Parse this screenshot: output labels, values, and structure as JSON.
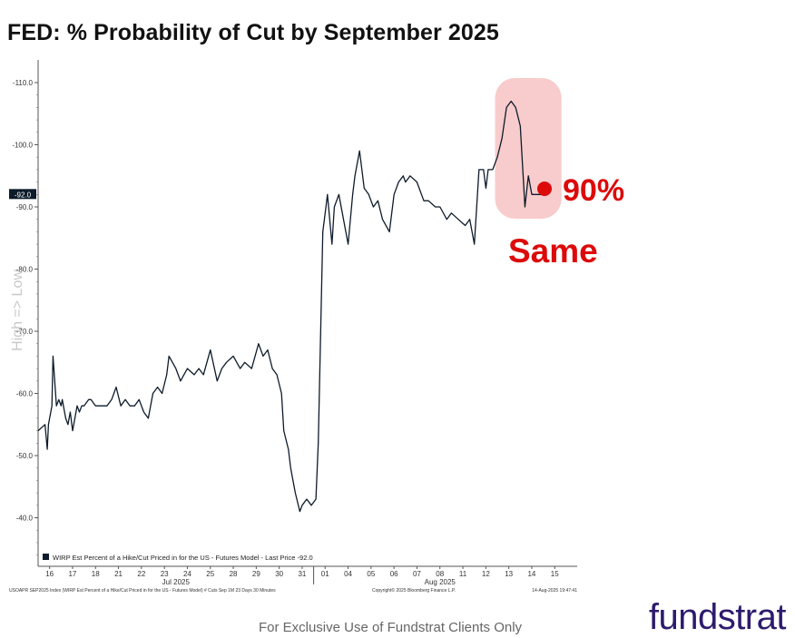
{
  "title": "FED: % Probability of Cut by September 2025",
  "chart_data": {
    "type": "line",
    "ylabel": "High => Low",
    "ylim": [
      -35,
      -114
    ],
    "y_ticks": [
      "-110.0",
      "-100.0",
      "-90.0",
      "-80.0",
      "-70.0",
      "-60.0",
      "-50.0",
      "-40.0"
    ],
    "y_tick_values": [
      -110,
      -100,
      -90,
      -80,
      -70,
      -60,
      -50,
      -40
    ],
    "x_tick_labels": [
      "16",
      "17",
      "18",
      "21",
      "22",
      "23",
      "24",
      "25",
      "28",
      "29",
      "30",
      "31",
      "01",
      "04",
      "05",
      "06",
      "07",
      "08",
      "11",
      "12",
      "13",
      "14",
      "15"
    ],
    "x_tick_positions": [
      0.5,
      1.5,
      2.5,
      3.5,
      4.5,
      5.5,
      6.5,
      7.5,
      8.5,
      9.5,
      10.5,
      11.5,
      12.5,
      13.5,
      14.5,
      15.5,
      16.5,
      17.5,
      18.5,
      19.5,
      20.5,
      21.5,
      22.5
    ],
    "x_range": [
      0,
      23.2
    ],
    "month_labels": [
      {
        "label": "Jul 2025",
        "x": 6
      },
      {
        "label": "Aug 2025",
        "x": 17.5
      }
    ],
    "month_divider_x": 12,
    "last_price_label": "-92.0",
    "legend": "WIRP Est Percent of a Hike/Cut Priced in for the US - Futures Model - Last Price -92.0",
    "series": [
      {
        "name": "WIRP Est Percent of a Hike/Cut Priced in for the US - Futures Model",
        "color": "#0d1b2a",
        "x": [
          0,
          0.3,
          0.4,
          0.45,
          0.6,
          0.65,
          0.8,
          0.9,
          1.0,
          1.05,
          1.2,
          1.3,
          1.4,
          1.5,
          1.7,
          1.8,
          1.9,
          2.0,
          2.2,
          2.3,
          2.5,
          2.6,
          2.8,
          3.0,
          3.2,
          3.4,
          3.6,
          3.8,
          4.0,
          4.2,
          4.4,
          4.6,
          4.8,
          5.0,
          5.2,
          5.4,
          5.6,
          5.7,
          6.0,
          6.2,
          6.5,
          6.8,
          7.0,
          7.2,
          7.5,
          7.8,
          8.0,
          8.2,
          8.5,
          8.8,
          9.0,
          9.3,
          9.6,
          9.8,
          10.0,
          10.2,
          10.4,
          10.6,
          10.7,
          10.9,
          11.0,
          11.2,
          11.4,
          11.5,
          11.7,
          11.9,
          12.1,
          12.2,
          12.4,
          12.5,
          12.6,
          12.8,
          12.9,
          13.1,
          13.3,
          13.5,
          13.7,
          13.8,
          14.0,
          14.2,
          14.4,
          14.6,
          14.8,
          15.0,
          15.3,
          15.5,
          15.7,
          15.9,
          16.0,
          16.2,
          16.5,
          16.8,
          17.0,
          17.3,
          17.5,
          17.8,
          18.0,
          18.3,
          18.6,
          18.8,
          19.0,
          19.2,
          19.4,
          19.5,
          19.6,
          19.8,
          20.0,
          20.2,
          20.4,
          20.6,
          20.8,
          21.0,
          21.2,
          21.35,
          21.5,
          21.7,
          21.9,
          22.0
        ],
        "y": [
          -54,
          -55,
          -51,
          -55,
          -58,
          -66,
          -58,
          -59,
          -58,
          -59,
          -56,
          -55,
          -57,
          -54,
          -58,
          -57,
          -58,
          -58,
          -59,
          -59,
          -58,
          -58,
          -58,
          -58,
          -59,
          -61,
          -58,
          -59,
          -58,
          -58,
          -59,
          -57,
          -56,
          -60,
          -61,
          -60,
          -63,
          -66,
          -64,
          -62,
          -64,
          -63,
          -64,
          -63,
          -67,
          -62,
          -64,
          -65,
          -66,
          -64,
          -65,
          -64,
          -68,
          -66,
          -67,
          -64,
          -63,
          -60,
          -54,
          -51,
          -48,
          -44,
          -41,
          -42,
          -43,
          -42,
          -43,
          -52,
          -86,
          -89,
          -92,
          -84,
          -90,
          -92,
          -88,
          -84,
          -92,
          -95,
          -99,
          -93,
          -92,
          -90,
          -91,
          -88,
          -86,
          -92,
          -94,
          -95,
          -94,
          -95,
          -94,
          -91,
          -91,
          -90,
          -90,
          -88,
          -89,
          -88,
          -87,
          -88,
          -84,
          -96,
          -96,
          -93,
          -96,
          -96,
          -98,
          -101,
          -106,
          -107,
          -106,
          -103,
          -90,
          -95,
          -92,
          -92,
          -92,
          -92
        ]
      }
    ],
    "highlight_box": {
      "x_start": 19.9,
      "x_end": 22.4,
      "y_top": -112,
      "y_bottom": -89
    },
    "marker": {
      "x": 22.3,
      "y": -92.8,
      "color": "#dd0a0a"
    },
    "annotations": [
      {
        "text": "90%",
        "color": "#dd0a0a"
      },
      {
        "text": "Same",
        "color": "#dd0a0a"
      }
    ]
  },
  "source_note": "USOAPR SEP2025 Index (WIRP Est Percent of a Hike/Cut Priced in for the US - Futures Model) # Cuts Sep 1M 23 Days 30 Minutes",
  "copyright": "Copyright© 2025 Bloomberg Finance L.P.",
  "timestamp": "14-Aug-2025 19:47:41",
  "footer_notice": "For Exclusive Use of Fundstrat Clients Only",
  "brand": "fundstrat",
  "colors": {
    "line": "#0d1b2a",
    "highlight": "#f7c6c6",
    "annotation": "#dd0a0a",
    "brand": "#2e1a6e"
  }
}
